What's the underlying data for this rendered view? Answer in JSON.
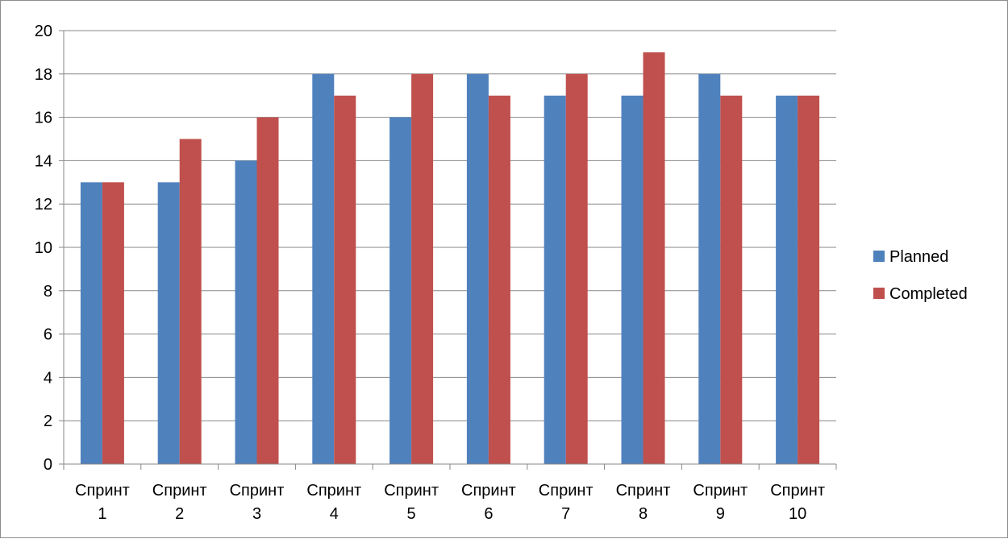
{
  "chart_data": {
    "type": "bar",
    "title": "",
    "xlabel": "",
    "ylabel": "",
    "categories": [
      "Спринт 1",
      "Спринт 2",
      "Спринт 3",
      "Спринт 4",
      "Спринт 5",
      "Спринт 6",
      "Спринт 7",
      "Спринт 8",
      "Спринт 9",
      "Спринт 10"
    ],
    "series": [
      {
        "name": "Planned",
        "color": "#4f81bd",
        "values": [
          13,
          13,
          14,
          18,
          16,
          18,
          17,
          17,
          18,
          17
        ]
      },
      {
        "name": "Completed",
        "color": "#c0504d",
        "values": [
          13,
          15,
          16,
          17,
          18,
          17,
          18,
          19,
          17,
          17
        ]
      }
    ],
    "ylim": [
      0,
      20
    ],
    "ytick_step": 2,
    "grid": true,
    "legend_position": "right"
  }
}
